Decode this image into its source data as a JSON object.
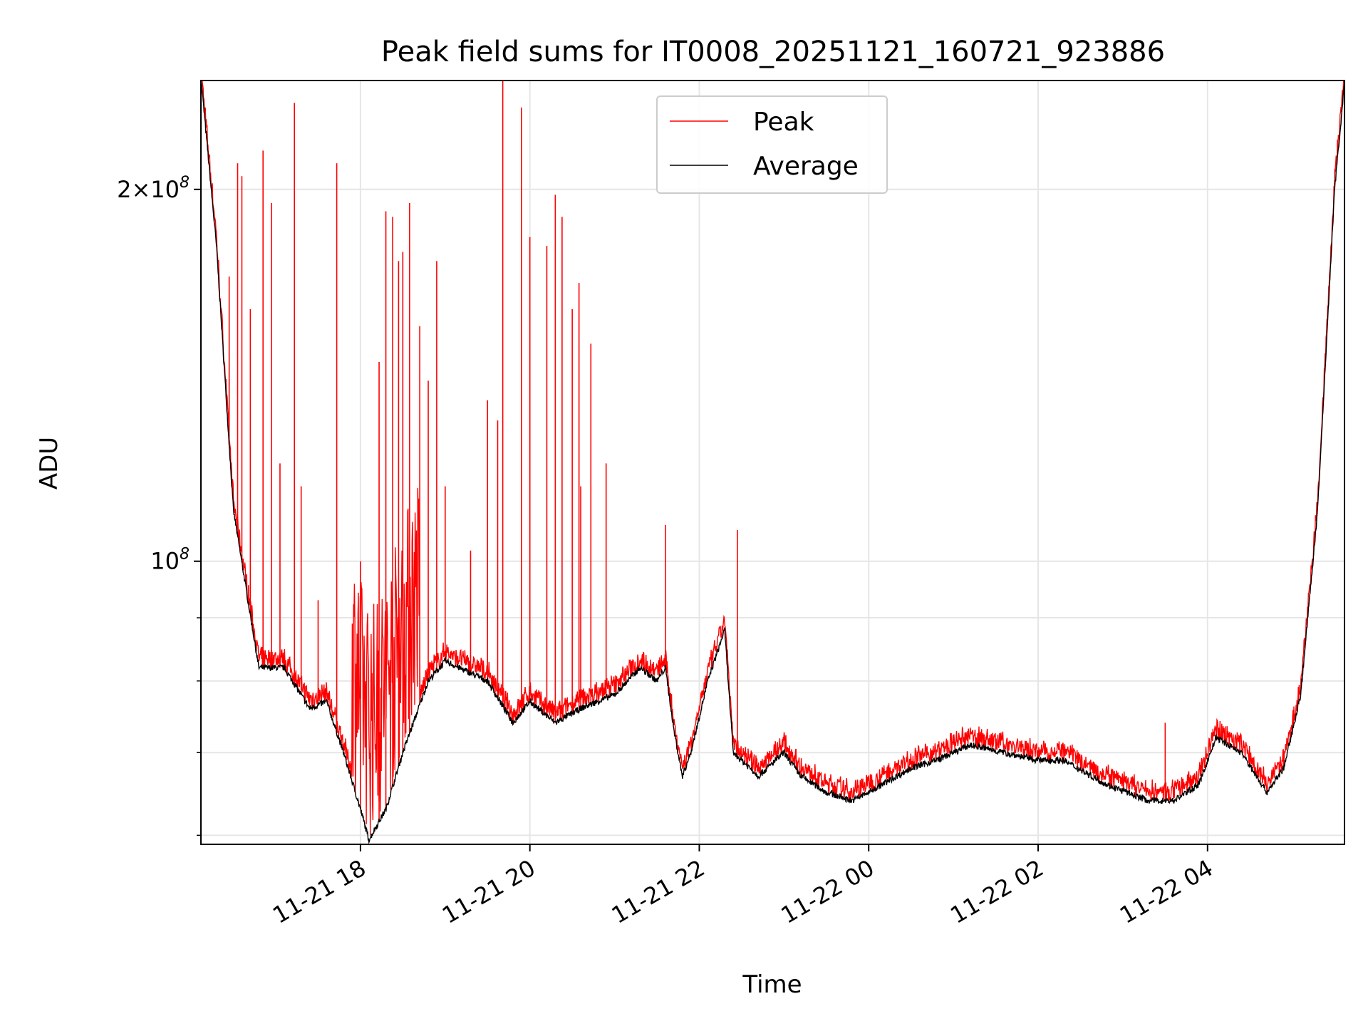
{
  "chart_data": {
    "type": "line",
    "title": "Peak field sums for IT0008_20251121_160721_923886",
    "xlabel": "Time",
    "ylabel": "ADU",
    "yscale": "log",
    "ylim": [
      59000000,
      245000000
    ],
    "xlim": [
      "2025-11-21 16:07",
      "2025-11-22 05:37"
    ],
    "grid": true,
    "legend_position": "top-center",
    "x_ticks": [
      {
        "label": "11-21 18",
        "time": "2025-11-21 18:00"
      },
      {
        "label": "11-21 20",
        "time": "2025-11-21 20:00"
      },
      {
        "label": "11-21 22",
        "time": "2025-11-21 22:00"
      },
      {
        "label": "11-22 00",
        "time": "2025-11-22 00:00"
      },
      {
        "label": "11-22 02",
        "time": "2025-11-22 02:00"
      },
      {
        "label": "11-22 04",
        "time": "2025-11-22 04:00"
      }
    ],
    "y_major_ticks": [
      {
        "base": "2",
        "mult": "×",
        "pow_base": "10",
        "exp": "8",
        "value": 200000000
      },
      {
        "base": "",
        "mult": "",
        "pow_base": "10",
        "exp": "8",
        "value": 100000000
      }
    ],
    "y_minor_ticks": [
      60000000,
      70000000,
      80000000,
      90000000
    ],
    "series": [
      {
        "name": "Average",
        "color": "#000000",
        "times_hours": [
          16.12,
          16.3,
          16.5,
          16.8,
          17.1,
          17.4,
          17.6,
          17.8,
          18.0,
          18.1,
          18.3,
          18.5,
          18.8,
          19.0,
          19.5,
          19.8,
          20.0,
          20.3,
          20.6,
          21.0,
          21.3,
          21.5,
          21.6,
          21.7,
          21.8,
          21.9,
          22.1,
          22.3,
          22.4,
          22.5,
          22.7,
          23.0,
          23.2,
          23.5,
          23.8,
          24.0,
          24.5,
          24.8,
          25.2,
          25.6,
          26.0,
          26.3,
          26.8,
          27.3,
          27.6,
          27.9,
          28.1,
          28.4,
          28.7,
          28.9,
          29.1,
          29.3,
          29.5,
          29.62
        ],
        "values": [
          245000000,
          180000000,
          110000000,
          82000000,
          82000000,
          76000000,
          77000000,
          70000000,
          63000000,
          59500000,
          63000000,
          70000000,
          80000000,
          83000000,
          80000000,
          74000000,
          77000000,
          74000000,
          76000000,
          78000000,
          82000000,
          80000000,
          82000000,
          73000000,
          67000000,
          70000000,
          80000000,
          88000000,
          70000000,
          69000000,
          67000000,
          70000000,
          67000000,
          65000000,
          64000000,
          65000000,
          68000000,
          69000000,
          71000000,
          70000000,
          69000000,
          69000000,
          66000000,
          64000000,
          64000000,
          66000000,
          72000000,
          70000000,
          65000000,
          68000000,
          78000000,
          110000000,
          200000000,
          245000000
        ]
      },
      {
        "name": "Peak",
        "color": "#ff0000",
        "spikes": [
          {
            "t": 16.45,
            "v": 170000000
          },
          {
            "t": 16.55,
            "v": 210000000
          },
          {
            "t": 16.6,
            "v": 205000000
          },
          {
            "t": 16.7,
            "v": 160000000
          },
          {
            "t": 16.85,
            "v": 215000000
          },
          {
            "t": 16.95,
            "v": 195000000
          },
          {
            "t": 17.05,
            "v": 120000000
          },
          {
            "t": 17.22,
            "v": 235000000
          },
          {
            "t": 17.3,
            "v": 115000000
          },
          {
            "t": 17.5,
            "v": 93000000
          },
          {
            "t": 17.72,
            "v": 210000000
          },
          {
            "t": 18.0,
            "v": 100000000
          },
          {
            "t": 18.22,
            "v": 145000000
          },
          {
            "t": 18.3,
            "v": 192000000
          },
          {
            "t": 18.38,
            "v": 190000000
          },
          {
            "t": 18.45,
            "v": 175000000
          },
          {
            "t": 18.5,
            "v": 178000000
          },
          {
            "t": 18.58,
            "v": 195000000
          },
          {
            "t": 18.7,
            "v": 155000000
          },
          {
            "t": 18.8,
            "v": 140000000
          },
          {
            "t": 18.9,
            "v": 175000000
          },
          {
            "t": 19.0,
            "v": 115000000
          },
          {
            "t": 19.3,
            "v": 102000000
          },
          {
            "t": 19.5,
            "v": 135000000
          },
          {
            "t": 19.62,
            "v": 130000000
          },
          {
            "t": 19.68,
            "v": 245000000
          },
          {
            "t": 19.9,
            "v": 233000000
          },
          {
            "t": 20.0,
            "v": 183000000
          },
          {
            "t": 20.2,
            "v": 180000000
          },
          {
            "t": 20.3,
            "v": 198000000
          },
          {
            "t": 20.38,
            "v": 190000000
          },
          {
            "t": 20.5,
            "v": 160000000
          },
          {
            "t": 20.58,
            "v": 168000000
          },
          {
            "t": 20.6,
            "v": 115000000
          },
          {
            "t": 20.72,
            "v": 150000000
          },
          {
            "t": 20.9,
            "v": 120000000
          },
          {
            "t": 21.6,
            "v": 107000000
          },
          {
            "t": 22.45,
            "v": 106000000
          },
          {
            "t": 27.5,
            "v": 74000000
          }
        ]
      }
    ]
  }
}
